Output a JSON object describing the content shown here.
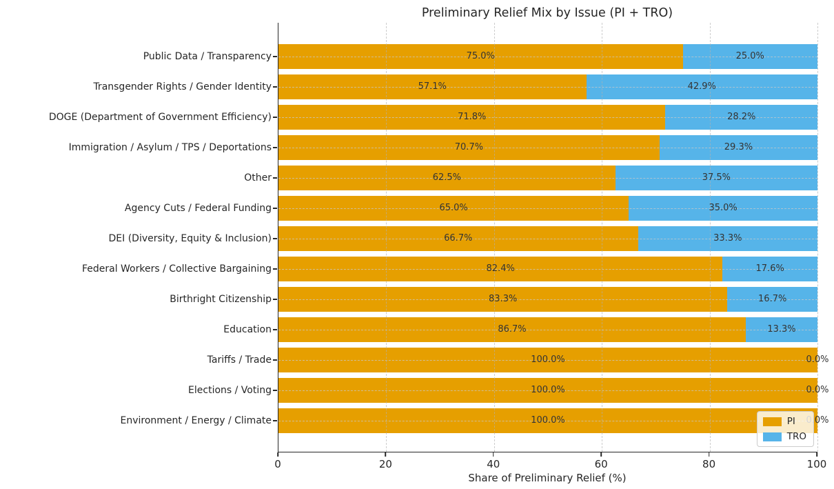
{
  "chart_data": {
    "type": "bar",
    "orientation": "horizontal",
    "stacked": true,
    "title": "Preliminary Relief Mix by Issue (PI + TRO)",
    "xlabel": "Share of Preliminary Relief (%)",
    "xlim": [
      0,
      100
    ],
    "xticks": [
      0,
      20,
      40,
      60,
      80,
      100
    ],
    "grid": "dashed, both axes",
    "legend_position": "lower right",
    "categories": [
      "Public Data / Transparency",
      "Transgender Rights / Gender Identity",
      "DOGE (Department of Government Efficiency)",
      "Immigration / Asylum / TPS / Deportations",
      "Other",
      "Agency Cuts / Federal Funding",
      "DEI (Diversity, Equity & Inclusion)",
      "Federal Workers / Collective Bargaining",
      "Birthright Citizenship",
      "Education",
      "Tariffs / Trade",
      "Elections / Voting",
      "Environment / Energy / Climate"
    ],
    "series": [
      {
        "name": "PI",
        "color": "#E69F00",
        "values": [
          75.0,
          57.1,
          71.8,
          70.7,
          62.5,
          65.0,
          66.7,
          82.4,
          83.3,
          86.7,
          100.0,
          100.0,
          100.0
        ],
        "labels": [
          "75.0%",
          "57.1%",
          "71.8%",
          "70.7%",
          "62.5%",
          "65.0%",
          "66.7%",
          "82.4%",
          "83.3%",
          "86.7%",
          "100.0%",
          "100.0%",
          "100.0%"
        ]
      },
      {
        "name": "TRO",
        "color": "#56B4E9",
        "values": [
          25.0,
          42.9,
          28.2,
          29.3,
          37.5,
          35.0,
          33.3,
          17.6,
          16.7,
          13.3,
          0.0,
          0.0,
          0.0
        ],
        "labels": [
          "25.0%",
          "42.9%",
          "28.2%",
          "29.3%",
          "37.5%",
          "35.0%",
          "33.3%",
          "17.6%",
          "16.7%",
          "13.3%",
          "0.0%",
          "0.0%",
          "0.0%"
        ]
      }
    ]
  },
  "legend": {
    "items": [
      {
        "label": "PI",
        "color": "#E69F00"
      },
      {
        "label": "TRO",
        "color": "#56B4E9"
      }
    ]
  },
  "colors": {
    "axis": "#262626",
    "value_text": "#333333",
    "grid": "#b0b0b0",
    "background": "#ffffff"
  }
}
